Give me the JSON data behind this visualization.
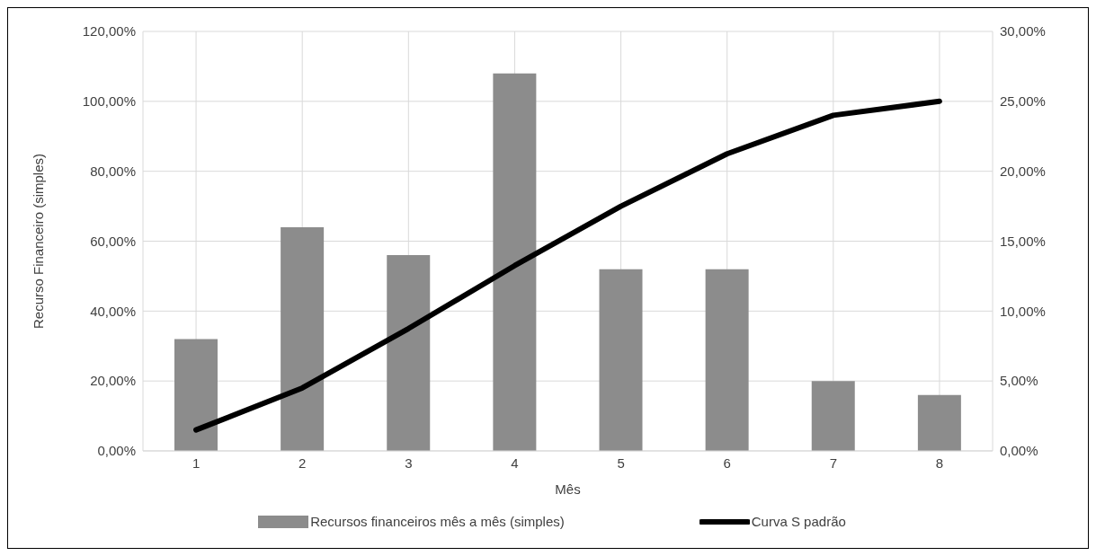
{
  "chart_data": {
    "type": "bar",
    "xlabel": "Mês",
    "ylabel": "Recurso Financeiro (simples)",
    "categories": [
      "1",
      "2",
      "3",
      "4",
      "5",
      "6",
      "7",
      "8"
    ],
    "series": [
      {
        "name": "Recursos financeiros mês a mês (simples)",
        "axis": "y2",
        "color": "#8c8c8c",
        "values": [
          8,
          16,
          14,
          27,
          13,
          13,
          5,
          4
        ]
      },
      {
        "name": "Curva S padrão",
        "type": "line",
        "axis": "y",
        "color": "#000000",
        "values": [
          6,
          18,
          35,
          53,
          70,
          85,
          96,
          100
        ]
      }
    ],
    "ylim": [
      0,
      120
    ],
    "yticks": [
      {
        "value": 0,
        "label": "0,00%"
      },
      {
        "value": 20,
        "label": "20,00%"
      },
      {
        "value": 40,
        "label": "40,00%"
      },
      {
        "value": 60,
        "label": "60,00%"
      },
      {
        "value": 80,
        "label": "80,00%"
      },
      {
        "value": 100,
        "label": "100,00%"
      },
      {
        "value": 120,
        "label": "120,00%"
      }
    ],
    "y2lim": [
      0,
      30
    ],
    "y2ticks": [
      {
        "value": 0,
        "label": "0,00%"
      },
      {
        "value": 5,
        "label": "5,00%"
      },
      {
        "value": 10,
        "label": "10,00%"
      },
      {
        "value": 15,
        "label": "15,00%"
      },
      {
        "value": 20,
        "label": "20,00%"
      },
      {
        "value": 25,
        "label": "25,00%"
      },
      {
        "value": 30,
        "label": "30,00%"
      }
    ],
    "grid": true,
    "legend": "bottom",
    "marker": "none",
    "line_style": "solid"
  }
}
